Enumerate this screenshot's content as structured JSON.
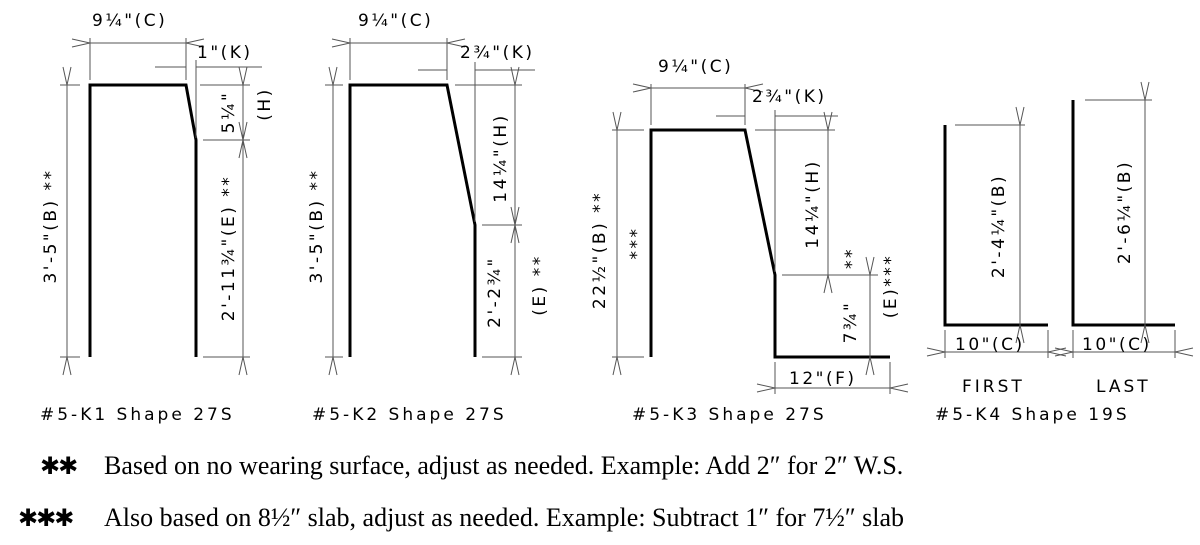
{
  "shapes": {
    "k1": {
      "caption": "#5-K1 Shape 27S",
      "c": "9¼\"(C)",
      "k": "1\"(K)",
      "h_val": "5¼\"",
      "h_tag": "(H)",
      "e": "2'-11¾\"(E) **",
      "b": "3'-5\"(B) **"
    },
    "k2": {
      "caption": "#5-K2 Shape 27S",
      "c": "9¼\"(C)",
      "k": "2¾\"(K)",
      "h": "14¼\"(H)",
      "e_val": "2'-2¾\"",
      "e_tag": "(E) **",
      "b": "3'-5\"(B) **"
    },
    "k3": {
      "caption": "#5-K3 Shape 27S",
      "c": "9¼\"(C)",
      "k": "2¾\"(K)",
      "h": "14¼\"(H)",
      "h_note": "**",
      "e_val": "7¾\"",
      "e_tag": "(E)***",
      "b": "22½\"(B) **",
      "b_note": "***",
      "f": "12\"(F)"
    },
    "k4": {
      "caption": "#5-K4 Shape 19S",
      "first": {
        "label": "FIRST",
        "b": "2'-4¼\"(B)",
        "c": "10\"(C)"
      },
      "last": {
        "label": "LAST",
        "b": "2'-6¼\"(B)",
        "c": "10\"(C)"
      }
    }
  },
  "footnotes": [
    {
      "marker": "✱✱",
      "text": "Based on no wearing surface, adjust as needed. Example: Add 2″ for 2″ W.S."
    },
    {
      "marker": "✱✱✱",
      "text": "Also based on 8½″ slab, adjust as needed. Example: Subtract 1″ for 7½″ slab"
    }
  ]
}
